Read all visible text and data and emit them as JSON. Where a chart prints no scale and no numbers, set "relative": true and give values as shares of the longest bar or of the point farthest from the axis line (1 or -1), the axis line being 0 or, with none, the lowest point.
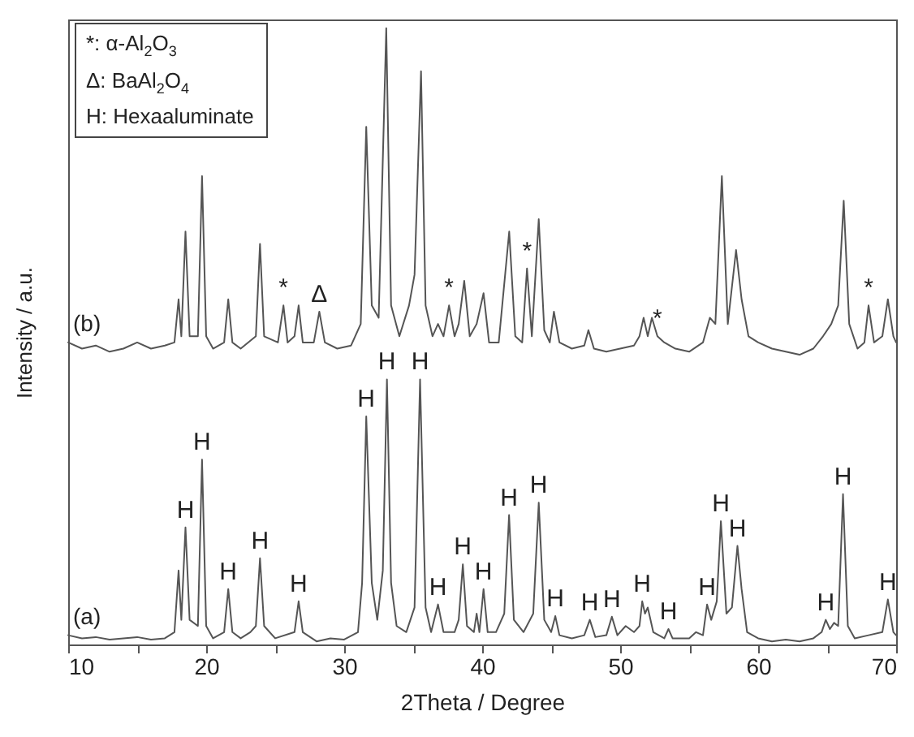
{
  "chart_data": {
    "type": "line",
    "relative": true,
    "xlabel": "2Theta / Degree",
    "ylabel": "Intensity / a.u.",
    "xlim": [
      10,
      70
    ],
    "xticks": [
      10,
      {
        "value": 15,
        "label": null
      },
      20,
      {
        "value": 25,
        "label": null
      },
      30,
      {
        "value": 35,
        "label": null
      },
      40,
      {
        "value": 45,
        "label": null
      },
      50,
      {
        "value": 55,
        "label": null
      },
      60,
      {
        "value": 65,
        "label": null
      },
      70
    ],
    "series": [
      {
        "name": "(a)",
        "color": "#555555",
        "x": [
          10,
          11,
          12,
          13,
          14,
          15,
          16,
          17,
          17.7,
          18.0,
          18.2,
          18.5,
          18.8,
          19.4,
          19.7,
          20.0,
          20.5,
          21.3,
          21.6,
          21.9,
          22.5,
          23.2,
          23.6,
          23.9,
          24.2,
          25,
          26.4,
          26.7,
          27.0,
          28,
          29,
          30,
          31,
          31.3,
          31.6,
          32.0,
          32.4,
          32.8,
          33.1,
          33.4,
          33.8,
          34.5,
          35.1,
          35.5,
          35.9,
          36.3,
          36.8,
          37.2,
          38.0,
          38.3,
          38.6,
          38.9,
          39.4,
          39.6,
          39.8,
          40.1,
          40.4,
          41,
          41.6,
          41.95,
          42.3,
          43.0,
          43.7,
          44.1,
          44.5,
          45,
          45.3,
          45.6,
          46.5,
          47.4,
          47.8,
          48.2,
          49.0,
          49.4,
          49.8,
          50.4,
          51,
          51.4,
          51.6,
          51.8,
          52.0,
          52.4,
          53.2,
          53.5,
          53.8,
          55,
          55.5,
          56,
          56.3,
          56.6,
          57.0,
          57.3,
          57.7,
          58.1,
          58.5,
          58.8,
          59.2,
          60,
          61,
          62,
          63,
          64,
          64.6,
          64.9,
          65.2,
          65.5,
          65.8,
          66.15,
          66.5,
          67,
          68,
          69,
          69.4,
          69.8,
          70
        ],
        "values": [
          0.015,
          0.01,
          0.012,
          0.008,
          0.01,
          0.012,
          0.008,
          0.01,
          0.02,
          0.12,
          0.04,
          0.19,
          0.04,
          0.03,
          0.3,
          0.03,
          0.01,
          0.02,
          0.09,
          0.02,
          0.01,
          0.02,
          0.03,
          0.14,
          0.03,
          0.01,
          0.02,
          0.07,
          0.02,
          0.005,
          0.01,
          0.008,
          0.02,
          0.1,
          0.37,
          0.1,
          0.04,
          0.12,
          0.43,
          0.1,
          0.03,
          0.02,
          0.06,
          0.43,
          0.06,
          0.02,
          0.065,
          0.02,
          0.02,
          0.04,
          0.13,
          0.03,
          0.02,
          0.05,
          0.02,
          0.09,
          0.02,
          0.02,
          0.05,
          0.21,
          0.04,
          0.02,
          0.05,
          0.23,
          0.04,
          0.02,
          0.046,
          0.015,
          0.01,
          0.015,
          0.04,
          0.012,
          0.015,
          0.045,
          0.015,
          0.03,
          0.02,
          0.03,
          0.07,
          0.05,
          0.06,
          0.02,
          0.01,
          0.025,
          0.01,
          0.01,
          0.02,
          0.015,
          0.065,
          0.04,
          0.07,
          0.2,
          0.05,
          0.06,
          0.16,
          0.09,
          0.02,
          0.01,
          0.005,
          0.008,
          0.005,
          0.01,
          0.02,
          0.04,
          0.025,
          0.035,
          0.03,
          0.244,
          0.03,
          0.01,
          0.015,
          0.02,
          0.073,
          0.02,
          0.015
        ]
      },
      {
        "name": "(b)",
        "color": "#555555",
        "x": [
          10,
          11,
          12,
          13,
          14,
          15,
          16,
          17,
          17.7,
          18.0,
          18.2,
          18.5,
          18.8,
          19.4,
          19.7,
          20.0,
          20.5,
          21.3,
          21.6,
          21.9,
          22.5,
          23.6,
          23.9,
          24.2,
          25.2,
          25.6,
          25.9,
          26.4,
          26.7,
          27.0,
          27.8,
          28.2,
          28.6,
          29.5,
          30.5,
          31.2,
          31.6,
          32.0,
          32.5,
          33.05,
          33.4,
          34.0,
          34.7,
          35.1,
          35.57,
          35.9,
          36.4,
          36.8,
          37.2,
          37.6,
          38.0,
          38.3,
          38.7,
          39.1,
          39.6,
          40.1,
          40.5,
          41.2,
          41.96,
          42.4,
          42.9,
          43.25,
          43.6,
          44.1,
          44.5,
          44.9,
          45.2,
          45.6,
          46.5,
          47.4,
          47.7,
          48.1,
          49,
          50,
          51,
          51.4,
          51.7,
          52.0,
          52.3,
          52.7,
          53.2,
          54,
          55,
          56,
          56.5,
          56.9,
          57.37,
          57.8,
          58.4,
          58.8,
          59.3,
          60,
          61,
          62,
          63,
          64,
          64.7,
          65.3,
          65.8,
          66.2,
          66.6,
          67.2,
          67.7,
          68.0,
          68.4,
          69.0,
          69.4,
          69.8,
          70
        ],
        "values": [
          0.49,
          0.48,
          0.485,
          0.475,
          0.48,
          0.49,
          0.48,
          0.485,
          0.49,
          0.56,
          0.5,
          0.67,
          0.5,
          0.5,
          0.76,
          0.5,
          0.48,
          0.49,
          0.56,
          0.49,
          0.48,
          0.5,
          0.65,
          0.5,
          0.49,
          0.55,
          0.49,
          0.5,
          0.55,
          0.49,
          0.49,
          0.54,
          0.49,
          0.48,
          0.485,
          0.52,
          0.84,
          0.55,
          0.53,
          1.0,
          0.55,
          0.5,
          0.55,
          0.6,
          0.93,
          0.55,
          0.5,
          0.52,
          0.5,
          0.55,
          0.5,
          0.52,
          0.59,
          0.5,
          0.52,
          0.57,
          0.49,
          0.49,
          0.67,
          0.5,
          0.49,
          0.61,
          0.5,
          0.69,
          0.51,
          0.49,
          0.54,
          0.49,
          0.48,
          0.485,
          0.51,
          0.48,
          0.475,
          0.48,
          0.485,
          0.5,
          0.53,
          0.5,
          0.53,
          0.5,
          0.49,
          0.48,
          0.475,
          0.49,
          0.53,
          0.52,
          0.76,
          0.52,
          0.64,
          0.56,
          0.5,
          0.49,
          0.48,
          0.475,
          0.47,
          0.48,
          0.5,
          0.52,
          0.55,
          0.72,
          0.52,
          0.48,
          0.49,
          0.55,
          0.49,
          0.5,
          0.56,
          0.5,
          0.49
        ]
      }
    ],
    "annotations": [
      "*: α-Al$_{2}$O$_{3}$",
      "Δ: BaAl$_{2}$O$_{4}$",
      "H: Hexaaluminate",
      {
        "text": "H",
        "x": 18.5,
        "y": 0.19
      },
      {
        "text": "H",
        "x": 19.7,
        "y": 0.3
      },
      {
        "text": "H",
        "x": 21.6,
        "y": 0.09
      },
      {
        "text": "H",
        "x": 23.9,
        "y": 0.14
      },
      {
        "text": "H",
        "x": 26.7,
        "y": 0.07
      },
      {
        "text": "H",
        "x": 31.6,
        "y": 0.37
      },
      {
        "text": "H",
        "x": 33.1,
        "y": 0.43
      },
      {
        "text": "H",
        "x": 35.5,
        "y": 0.43
      },
      {
        "text": "H",
        "x": 36.8,
        "y": 0.065
      },
      {
        "text": "H",
        "x": 38.6,
        "y": 0.13
      },
      {
        "text": "H",
        "x": 40.1,
        "y": 0.09
      },
      {
        "text": "H",
        "x": 41.95,
        "y": 0.21
      },
      {
        "text": "H",
        "x": 44.1,
        "y": 0.23
      },
      {
        "text": "H",
        "x": 45.3,
        "y": 0.046
      },
      {
        "text": "H",
        "x": 47.8,
        "y": 0.04
      },
      {
        "text": "H",
        "x": 49.4,
        "y": 0.045
      },
      {
        "text": "H",
        "x": 51.6,
        "y": 0.07
      },
      {
        "text": "H",
        "x": 53.5,
        "y": 0.025
      },
      {
        "text": "H",
        "x": 56.3,
        "y": 0.065
      },
      {
        "text": "H",
        "x": 57.3,
        "y": 0.2
      },
      {
        "text": "H",
        "x": 58.5,
        "y": 0.16
      },
      {
        "text": "H",
        "x": 64.9,
        "y": 0.04
      },
      {
        "text": "H",
        "x": 66.15,
        "y": 0.244
      },
      {
        "text": "H",
        "x": 69.4,
        "y": 0.073
      },
      {
        "text": "*",
        "x": 25.6,
        "y": 0.55
      },
      {
        "text": "Δ",
        "x": 28.2,
        "y": 0.54
      },
      {
        "text": "*",
        "x": 37.6,
        "y": 0.55
      },
      {
        "text": "*",
        "x": 43.25,
        "y": 0.61
      },
      {
        "text": "*",
        "x": 52.7,
        "y": 0.5
      },
      {
        "text": "*",
        "x": 68.0,
        "y": 0.55
      }
    ]
  }
}
